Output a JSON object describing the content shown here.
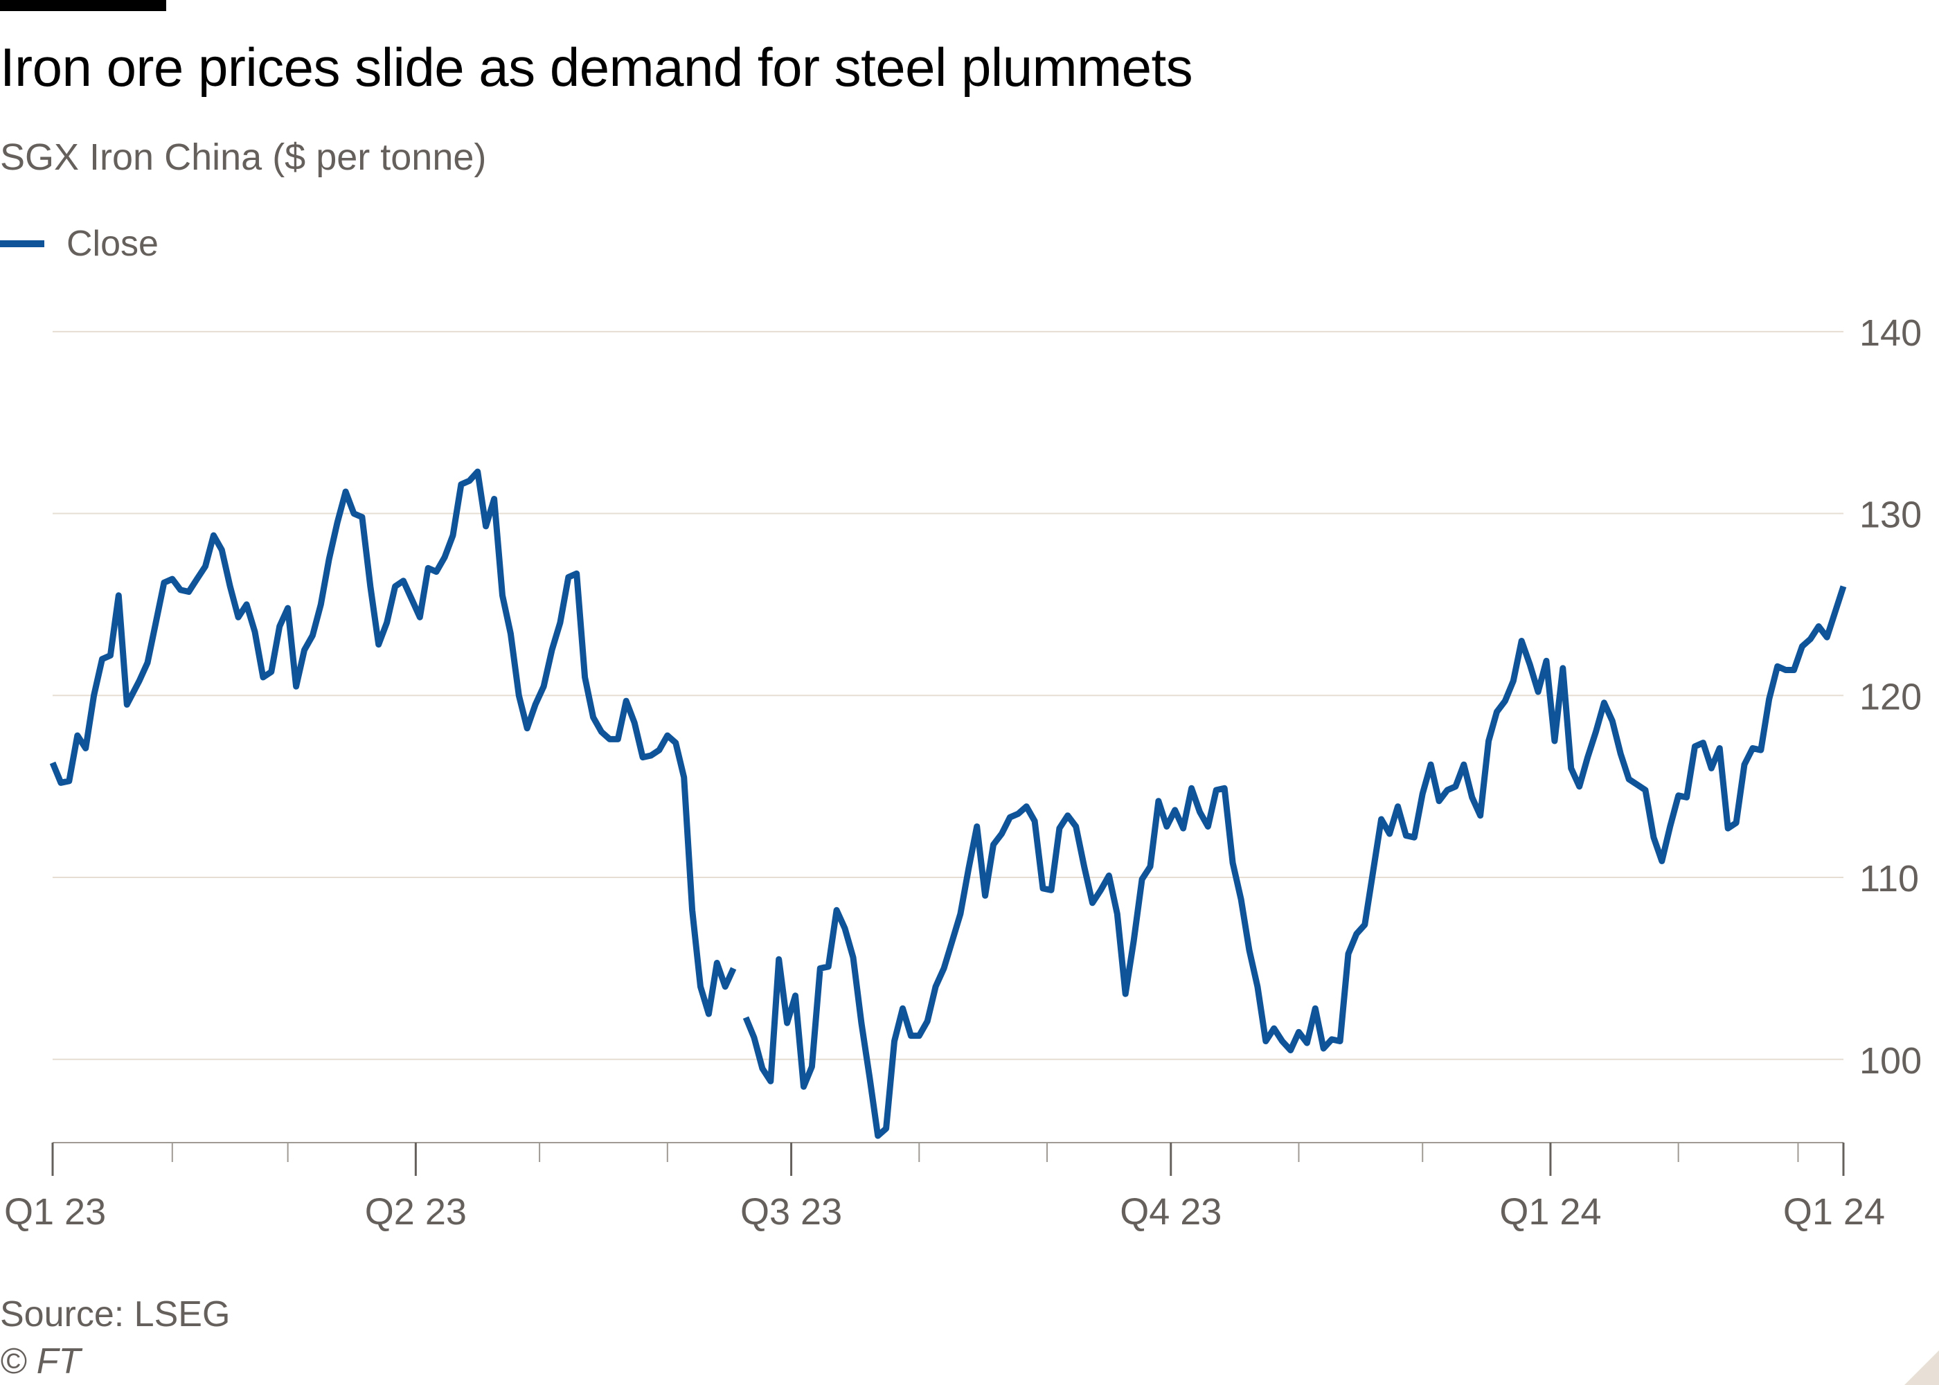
{
  "title": "Iron ore prices slide as demand for steel plummets",
  "subtitle": "SGX Iron China ($ per tonne)",
  "source": "Source: LSEG",
  "copyright": "© FT",
  "colors": {
    "line": "#0f5499",
    "grid": "#e6ddd3",
    "axis": "#a09a94",
    "text": "#66605c"
  },
  "chart_data": {
    "type": "line",
    "title": "Iron ore prices slide as demand for steel plummets",
    "subtitle": "SGX Iron China ($ per tonne)",
    "xlabel": "",
    "ylabel": "",
    "ylim": [
      95.5,
      143
    ],
    "xlim": [
      "2023-01-03",
      "2024-03-12"
    ],
    "y_ticks": [
      100,
      110,
      120,
      130,
      140
    ],
    "y_axis_side": "right",
    "grid": true,
    "legend": "top-left",
    "x_ticks": [
      {
        "label": "Q1 23",
        "x": "2023-01-03"
      },
      {
        "label": "Q2 23",
        "x": "2023-04-01"
      },
      {
        "label": "Q3 23",
        "x": "2023-07-01"
      },
      {
        "label": "Q4 23",
        "x": "2023-10-01"
      },
      {
        "label": "Q1 24",
        "x": "2024-01-01"
      },
      {
        "label": "Q1 24",
        "x": "2024-03-12"
      }
    ],
    "minor_ticks": [
      "2023-02-01",
      "2023-03-01",
      "2023-05-01",
      "2023-06-01",
      "2023-08-01",
      "2023-09-01",
      "2023-11-01",
      "2023-12-01",
      "2024-02-01",
      "2024-03-01"
    ],
    "series": [
      {
        "name": "Close",
        "points": [
          [
            "2023-01-03",
            116.3
          ],
          [
            "2023-01-05",
            115.2
          ],
          [
            "2023-01-07",
            115.3
          ],
          [
            "2023-01-09",
            117.8
          ],
          [
            "2023-01-11",
            117.1
          ],
          [
            "2023-01-13",
            120.0
          ],
          [
            "2023-01-15",
            122.0
          ],
          [
            "2023-01-17",
            122.2
          ],
          [
            "2023-01-19",
            125.5
          ],
          [
            "2023-01-21",
            119.5
          ],
          [
            "2023-01-24",
            120.8
          ],
          [
            "2023-01-26",
            121.8
          ],
          [
            "2023-01-28",
            124.0
          ],
          [
            "2023-01-30",
            126.2
          ],
          [
            "2023-02-01",
            126.4
          ],
          [
            "2023-02-03",
            125.8
          ],
          [
            "2023-02-05",
            125.7
          ],
          [
            "2023-02-07",
            126.4
          ],
          [
            "2023-02-09",
            127.1
          ],
          [
            "2023-02-11",
            128.8
          ],
          [
            "2023-02-13",
            128.0
          ],
          [
            "2023-02-15",
            126.0
          ],
          [
            "2023-02-17",
            124.3
          ],
          [
            "2023-02-19",
            125.0
          ],
          [
            "2023-02-21",
            123.5
          ],
          [
            "2023-02-23",
            121.0
          ],
          [
            "2023-02-25",
            121.3
          ],
          [
            "2023-02-27",
            123.8
          ],
          [
            "2023-03-01",
            124.8
          ],
          [
            "2023-03-03",
            120.5
          ],
          [
            "2023-03-05",
            122.5
          ],
          [
            "2023-03-07",
            123.3
          ],
          [
            "2023-03-09",
            125.0
          ],
          [
            "2023-03-11",
            127.5
          ],
          [
            "2023-03-13",
            129.5
          ],
          [
            "2023-03-15",
            131.2
          ],
          [
            "2023-03-17",
            130.0
          ],
          [
            "2023-03-19",
            129.8
          ],
          [
            "2023-03-21",
            126.0
          ],
          [
            "2023-03-23",
            122.8
          ],
          [
            "2023-03-25",
            124.0
          ],
          [
            "2023-03-27",
            126.0
          ],
          [
            "2023-03-29",
            126.3
          ],
          [
            "2023-03-31",
            125.3
          ],
          [
            "2023-04-02",
            124.3
          ],
          [
            "2023-04-04",
            127.0
          ],
          [
            "2023-04-06",
            126.8
          ],
          [
            "2023-04-08",
            127.6
          ],
          [
            "2023-04-10",
            128.8
          ],
          [
            "2023-04-12",
            131.6
          ],
          [
            "2023-04-14",
            131.8
          ],
          [
            "2023-04-16",
            132.3
          ],
          [
            "2023-04-18",
            129.3
          ],
          [
            "2023-04-20",
            130.8
          ],
          [
            "2023-04-22",
            125.5
          ],
          [
            "2023-04-24",
            123.4
          ],
          [
            "2023-04-26",
            120.0
          ],
          [
            "2023-04-28",
            118.2
          ],
          [
            "2023-04-30",
            119.5
          ],
          [
            "2023-05-02",
            120.5
          ],
          [
            "2023-05-04",
            122.5
          ],
          [
            "2023-05-06",
            124.0
          ],
          [
            "2023-05-08",
            126.5
          ],
          [
            "2023-05-10",
            126.7
          ],
          [
            "2023-05-12",
            121.0
          ],
          [
            "2023-05-14",
            118.8
          ],
          [
            "2023-05-16",
            118.0
          ],
          [
            "2023-05-18",
            117.6
          ],
          [
            "2023-05-20",
            117.6
          ],
          [
            "2023-05-22",
            119.7
          ],
          [
            "2023-05-24",
            118.5
          ],
          [
            "2023-05-26",
            116.6
          ],
          [
            "2023-05-28",
            116.7
          ],
          [
            "2023-05-30",
            117.0
          ],
          [
            "2023-06-01",
            117.8
          ],
          [
            "2023-06-03",
            117.4
          ],
          [
            "2023-06-05",
            115.5
          ],
          [
            "2023-06-07",
            108.2
          ],
          [
            "2023-06-09",
            104.0
          ],
          [
            "2023-06-11",
            102.5
          ],
          [
            "2023-06-13",
            105.3
          ],
          [
            "2023-06-15",
            104.0
          ],
          [
            "2023-06-17",
            105.0
          ],
          [
            "2023-06-19",
            null
          ],
          [
            "2023-06-20",
            102.3
          ],
          [
            "2023-06-22",
            101.2
          ],
          [
            "2023-06-24",
            99.5
          ],
          [
            "2023-06-26",
            98.8
          ],
          [
            "2023-06-28",
            105.5
          ],
          [
            "2023-06-30",
            102.0
          ],
          [
            "2023-07-02",
            103.5
          ],
          [
            "2023-07-04",
            98.5
          ],
          [
            "2023-07-06",
            99.6
          ],
          [
            "2023-07-08",
            105.0
          ],
          [
            "2023-07-10",
            105.1
          ],
          [
            "2023-07-12",
            108.2
          ],
          [
            "2023-07-14",
            107.2
          ],
          [
            "2023-07-16",
            105.6
          ],
          [
            "2023-07-18",
            102.0
          ],
          [
            "2023-07-20",
            99.0
          ],
          [
            "2023-07-22",
            95.8
          ],
          [
            "2023-07-24",
            96.2
          ],
          [
            "2023-07-26",
            101.0
          ],
          [
            "2023-07-28",
            102.8
          ],
          [
            "2023-07-30",
            101.3
          ],
          [
            "2023-08-01",
            101.3
          ],
          [
            "2023-08-03",
            102.1
          ],
          [
            "2023-08-05",
            104.0
          ],
          [
            "2023-08-07",
            105.0
          ],
          [
            "2023-08-09",
            106.5
          ],
          [
            "2023-08-11",
            108.0
          ],
          [
            "2023-08-13",
            110.5
          ],
          [
            "2023-08-15",
            112.8
          ],
          [
            "2023-08-17",
            109.0
          ],
          [
            "2023-08-19",
            111.8
          ],
          [
            "2023-08-21",
            112.4
          ],
          [
            "2023-08-23",
            113.3
          ],
          [
            "2023-08-25",
            113.5
          ],
          [
            "2023-08-27",
            113.9
          ],
          [
            "2023-08-29",
            113.1
          ],
          [
            "2023-08-31",
            109.4
          ],
          [
            "2023-09-02",
            109.3
          ],
          [
            "2023-09-04",
            112.7
          ],
          [
            "2023-09-06",
            113.4
          ],
          [
            "2023-09-08",
            112.8
          ],
          [
            "2023-09-10",
            110.6
          ],
          [
            "2023-09-12",
            108.6
          ],
          [
            "2023-09-14",
            109.3
          ],
          [
            "2023-09-16",
            110.1
          ],
          [
            "2023-09-18",
            108.0
          ],
          [
            "2023-09-20",
            103.6
          ],
          [
            "2023-09-22",
            106.5
          ],
          [
            "2023-09-24",
            109.9
          ],
          [
            "2023-09-26",
            110.6
          ],
          [
            "2023-09-28",
            114.2
          ],
          [
            "2023-09-30",
            112.8
          ],
          [
            "2023-10-02",
            113.7
          ],
          [
            "2023-10-04",
            112.7
          ],
          [
            "2023-10-06",
            114.9
          ],
          [
            "2023-10-08",
            113.6
          ],
          [
            "2023-10-10",
            112.8
          ],
          [
            "2023-10-12",
            114.8
          ],
          [
            "2023-10-14",
            114.9
          ],
          [
            "2023-10-16",
            110.8
          ],
          [
            "2023-10-18",
            108.8
          ],
          [
            "2023-10-20",
            106.0
          ],
          [
            "2023-10-22",
            104.0
          ],
          [
            "2023-10-24",
            101.0
          ],
          [
            "2023-10-26",
            101.7
          ],
          [
            "2023-10-28",
            101.0
          ],
          [
            "2023-10-30",
            100.5
          ],
          [
            "2023-11-01",
            101.5
          ],
          [
            "2023-11-03",
            100.9
          ],
          [
            "2023-11-05",
            102.8
          ],
          [
            "2023-11-07",
            100.6
          ],
          [
            "2023-11-09",
            101.1
          ],
          [
            "2023-11-11",
            101.0
          ],
          [
            "2023-11-13",
            105.8
          ],
          [
            "2023-11-15",
            106.9
          ],
          [
            "2023-11-17",
            107.4
          ],
          [
            "2023-11-19",
            110.3
          ],
          [
            "2023-11-21",
            113.2
          ],
          [
            "2023-11-23",
            112.4
          ],
          [
            "2023-11-25",
            113.9
          ],
          [
            "2023-11-27",
            112.3
          ],
          [
            "2023-11-29",
            112.2
          ],
          [
            "2023-12-01",
            114.6
          ],
          [
            "2023-12-03",
            116.2
          ],
          [
            "2023-12-05",
            114.2
          ],
          [
            "2023-12-07",
            114.8
          ],
          [
            "2023-12-09",
            115.0
          ],
          [
            "2023-12-11",
            116.2
          ],
          [
            "2023-12-13",
            114.4
          ],
          [
            "2023-12-15",
            113.4
          ],
          [
            "2023-12-17",
            117.5
          ],
          [
            "2023-12-19",
            119.1
          ],
          [
            "2023-12-21",
            119.7
          ],
          [
            "2023-12-23",
            120.8
          ],
          [
            "2023-12-25",
            123.0
          ],
          [
            "2023-12-27",
            121.7
          ],
          [
            "2023-12-29",
            120.2
          ],
          [
            "2023-12-31",
            121.9
          ],
          [
            "2024-01-02",
            117.5
          ],
          [
            "2024-01-04",
            121.5
          ],
          [
            "2024-01-06",
            116.0
          ],
          [
            "2024-01-08",
            115.0
          ],
          [
            "2024-01-10",
            116.6
          ],
          [
            "2024-01-12",
            118.0
          ],
          [
            "2024-01-14",
            119.6
          ],
          [
            "2024-01-16",
            118.6
          ],
          [
            "2024-01-18",
            116.8
          ],
          [
            "2024-01-20",
            115.4
          ],
          [
            "2024-01-22",
            115.1
          ],
          [
            "2024-01-24",
            114.8
          ],
          [
            "2024-01-26",
            112.2
          ],
          [
            "2024-01-28",
            110.9
          ],
          [
            "2024-01-30",
            112.8
          ],
          [
            "2024-02-01",
            114.5
          ],
          [
            "2024-02-03",
            114.4
          ],
          [
            "2024-02-05",
            117.2
          ],
          [
            "2024-02-07",
            117.4
          ],
          [
            "2024-02-09",
            116.0
          ],
          [
            "2024-02-11",
            117.1
          ],
          [
            "2024-02-13",
            112.7
          ],
          [
            "2024-02-15",
            113.0
          ],
          [
            "2024-02-17",
            116.2
          ],
          [
            "2024-02-19",
            117.1
          ],
          [
            "2024-02-21",
            117.0
          ],
          [
            "2024-02-23",
            119.8
          ],
          [
            "2024-02-25",
            121.6
          ],
          [
            "2024-02-27",
            121.4
          ],
          [
            "2024-02-29",
            121.4
          ],
          [
            "2024-03-02",
            122.7
          ],
          [
            "2024-03-04",
            123.1
          ],
          [
            "2024-03-06",
            123.8
          ],
          [
            "2024-03-08",
            123.2
          ],
          [
            "2024-03-12",
            126.0
          ]
        ]
      }
    ]
  }
}
